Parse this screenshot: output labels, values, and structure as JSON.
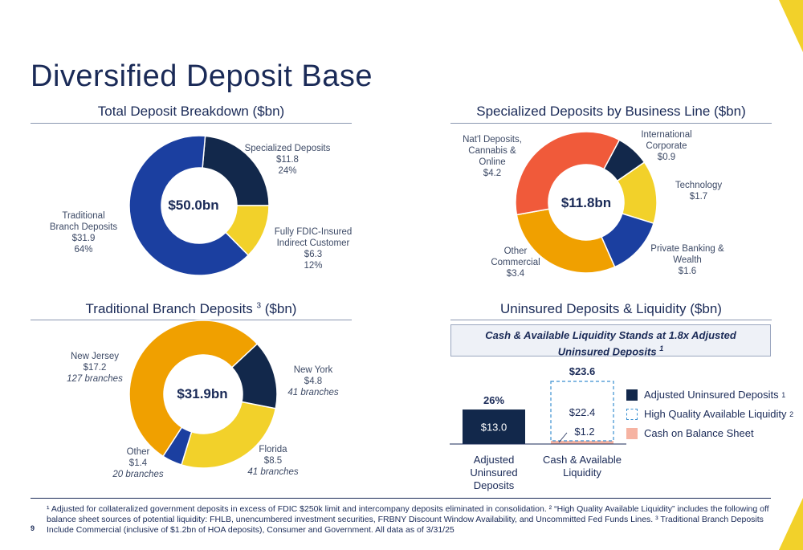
{
  "title": "Diversified Deposit Base",
  "page_number": "9",
  "colors": {
    "navy": "#12284b",
    "blue": "#1b3fa0",
    "yellow": "#f2d12a",
    "orange": "#f0a000",
    "red": "#f05a3a",
    "salmon": "#f6b3a2"
  },
  "panels": {
    "total": {
      "title": "Total Deposit Breakdown ($bn)",
      "center": "$50.0bn",
      "labels": [
        {
          "lines": [
            "Specialized Deposits",
            "$11.8",
            "24%"
          ]
        },
        {
          "lines": [
            "Fully FDIC-Insured",
            "Indirect Customer",
            "$6.3",
            "12%"
          ]
        },
        {
          "lines": [
            "Traditional",
            "Branch Deposits",
            "$31.9",
            "64%"
          ]
        }
      ]
    },
    "specialized": {
      "title": "Specialized Deposits by Business Line ($bn)",
      "center": "$11.8bn",
      "labels": [
        {
          "lines": [
            "International",
            "Corporate",
            "$0.9"
          ]
        },
        {
          "lines": [
            "Technology",
            "$1.7"
          ]
        },
        {
          "lines": [
            "Private Banking &",
            "Wealth",
            "$1.6"
          ]
        },
        {
          "lines": [
            "Other",
            "Commercial",
            "$3.4"
          ]
        },
        {
          "lines": [
            "Nat'l Deposits,",
            "Cannabis &",
            "Online",
            "$4.2"
          ]
        }
      ]
    },
    "traditional": {
      "title": "Traditional Branch Deposits",
      "title_sup": "3",
      "title_suffix": "($bn)",
      "center": "$31.9bn",
      "labels": [
        {
          "lines": [
            "New York",
            "$4.8"
          ],
          "branches": "41 branches"
        },
        {
          "lines": [
            "Florida",
            "$8.5"
          ],
          "branches": "41 branches"
        },
        {
          "lines": [
            "Other",
            "$1.4"
          ],
          "branches": "20 branches"
        },
        {
          "lines": [
            "New Jersey",
            "$17.2"
          ],
          "branches": "127 branches"
        }
      ]
    },
    "uninsured": {
      "title": "Uninsured Deposits & Liquidity ($bn)",
      "callout_line1": "Cash & Available Liquidity Stands at 1.8x Adjusted",
      "callout_line2": "Uninsured Deposits",
      "callout_sup": "1",
      "legend": [
        {
          "label": "Adjusted Uninsured Deposits",
          "sup": "1"
        },
        {
          "label": "High Quality Available Liquidity",
          "sup": "2"
        },
        {
          "label": "Cash on Balance Sheet",
          "sup": ""
        }
      ]
    }
  },
  "chart_data": [
    {
      "type": "pie",
      "title": "Total Deposit Breakdown ($bn)",
      "center_label": "$50.0bn",
      "categories": [
        "Specialized Deposits",
        "Fully FDIC-Insured Indirect Customer",
        "Traditional Branch Deposits"
      ],
      "values": [
        11.8,
        6.3,
        31.9
      ],
      "percent": [
        24,
        12,
        64
      ],
      "colors": [
        "#12284b",
        "#f2d12a",
        "#1b3fa0"
      ]
    },
    {
      "type": "pie",
      "title": "Specialized Deposits by Business Line ($bn)",
      "center_label": "$11.8bn",
      "categories": [
        "International Corporate",
        "Technology",
        "Private Banking & Wealth",
        "Other Commercial",
        "Nat'l Deposits, Cannabis & Online"
      ],
      "values": [
        0.9,
        1.7,
        1.6,
        3.4,
        4.2
      ],
      "colors": [
        "#12284b",
        "#f2d12a",
        "#1b3fa0",
        "#f0a000",
        "#f05a3a"
      ]
    },
    {
      "type": "pie",
      "title": "Traditional Branch Deposits ($bn)",
      "center_label": "$31.9bn",
      "categories": [
        "New York",
        "Florida",
        "Other",
        "New Jersey"
      ],
      "values": [
        4.8,
        8.5,
        1.4,
        17.2
      ],
      "branches": [
        41,
        41,
        20,
        127
      ],
      "colors": [
        "#12284b",
        "#f2d12a",
        "#1b3fa0",
        "#f0a000"
      ]
    },
    {
      "type": "bar",
      "title": "Uninsured Deposits & Liquidity ($bn)",
      "categories": [
        "Adjusted Uninsured Deposits",
        "Cash & Available Liquidity"
      ],
      "series": [
        {
          "name": "Adjusted Uninsured Deposits",
          "values": [
            13.0,
            0
          ],
          "labels": [
            "$13.0",
            ""
          ]
        },
        {
          "name": "Cash on Balance Sheet",
          "values": [
            0,
            1.2
          ],
          "labels": [
            "",
            "$1.2"
          ]
        },
        {
          "name": "High Quality Available Liquidity",
          "values": [
            0,
            22.4
          ],
          "labels": [
            "",
            "$22.4"
          ]
        }
      ],
      "totals": [
        "",
        "$23.6"
      ],
      "top_labels": [
        "26%",
        ""
      ],
      "ylim": [
        0,
        23.6
      ]
    }
  ],
  "footnote": "¹ Adjusted for collateralized government deposits in excess of FDIC $250k limit and intercompany deposits eliminated in consolidation. ² “High Quality Available Liquidity” includes the following off balance sheet sources of potential liquidity: FHLB, unencumbered investment securities, FRBNY Discount Window Availability, and Uncommitted Fed Funds Lines. ³ Traditional Branch Deposits Include Commercial (inclusive of $1.2bn of HOA deposits), Consumer and Government. All data as of 3/31/25"
}
